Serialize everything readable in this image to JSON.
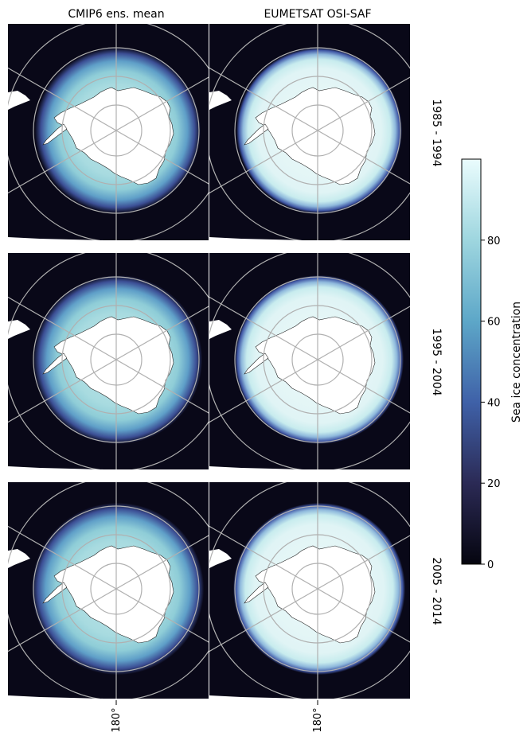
{
  "columns": [
    "CMIP6 ens. mean",
    "EUMETSAT OSI-SAF"
  ],
  "rows": [
    "1985 - 1994",
    "1995 - 2004",
    "2005 - 2014"
  ],
  "longitude_tick_label": "180°",
  "colorbar": {
    "label": "Sea ice concentration",
    "ticks": [
      "0",
      "20",
      "40",
      "60",
      "80"
    ],
    "range": [
      0,
      100
    ],
    "colormap": "ice",
    "colors": [
      "#05050f",
      "#2b2a55",
      "#3f61a8",
      "#5da7c8",
      "#9ed6df",
      "#eafcfd"
    ]
  },
  "map_style": {
    "ocean_open": "#090818",
    "ice_high_obs": "#e2f6f6",
    "ice_high_model": "#a8dbe0",
    "ice_edge": "#4d5aa6",
    "land": "#ffffff",
    "graticule": "#b0b0b0"
  }
}
